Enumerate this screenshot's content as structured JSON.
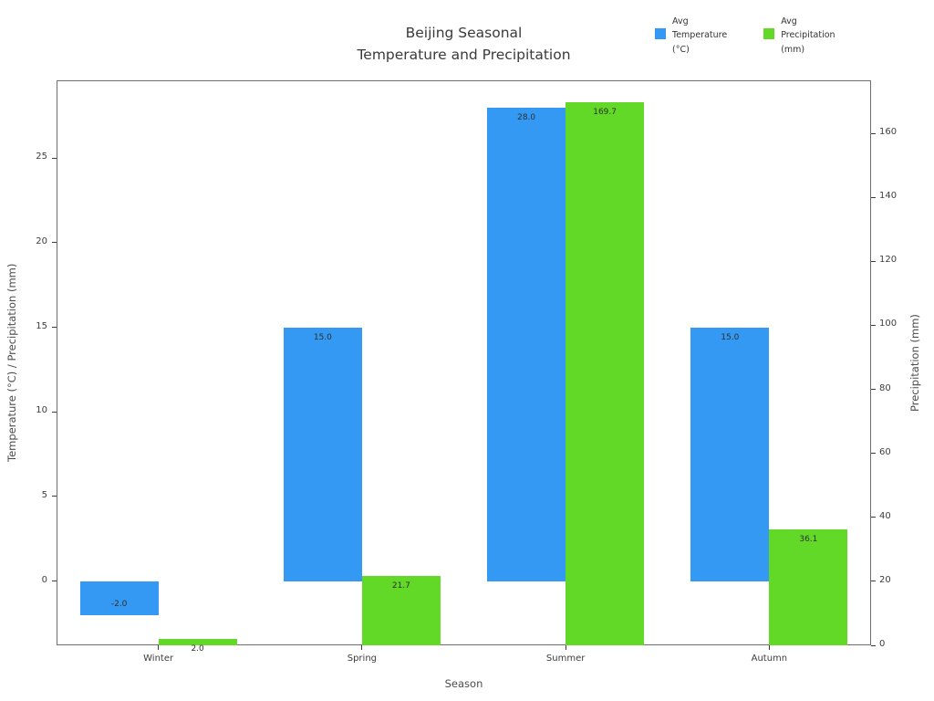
{
  "chart_data": {
    "type": "bar",
    "title": "Beijing Seasonal\nTemperature and Precipitation",
    "categories": [
      "Winter",
      "Spring",
      "Summer",
      "Autumn"
    ],
    "series": [
      {
        "name": "Avg Temperature (°C)",
        "legend_label": "Avg\nTemperature\n(°C)",
        "axis": "left",
        "color": "#3399f3",
        "values": [
          -2.0,
          15.0,
          28.0,
          15.0
        ],
        "value_labels": [
          "-2.0",
          "15.0",
          "28.0",
          "15.0"
        ]
      },
      {
        "name": "Avg Precipitation (mm)",
        "legend_label": "Avg\nPrecipitation\n(mm)",
        "axis": "right",
        "color": "#62d926",
        "values": [
          2.0,
          21.7,
          169.7,
          36.1
        ],
        "value_labels": [
          "2.0",
          "21.7",
          "169.7",
          "36.1"
        ]
      }
    ],
    "left_axis": {
      "label": "Temperature (°C) / Precipitation (mm)",
      "ticks": [
        0,
        5,
        10,
        15,
        20,
        25
      ],
      "range": [
        -3.8,
        29.6
      ]
    },
    "right_axis": {
      "label": "Precipitation (mm)",
      "ticks": [
        0,
        20,
        40,
        60,
        80,
        100,
        120,
        140,
        160
      ],
      "range": [
        0,
        176.6
      ]
    },
    "x_axis": {
      "label": "Season"
    },
    "legend_position": "top-right",
    "grid": false,
    "background": "#ffffff"
  }
}
